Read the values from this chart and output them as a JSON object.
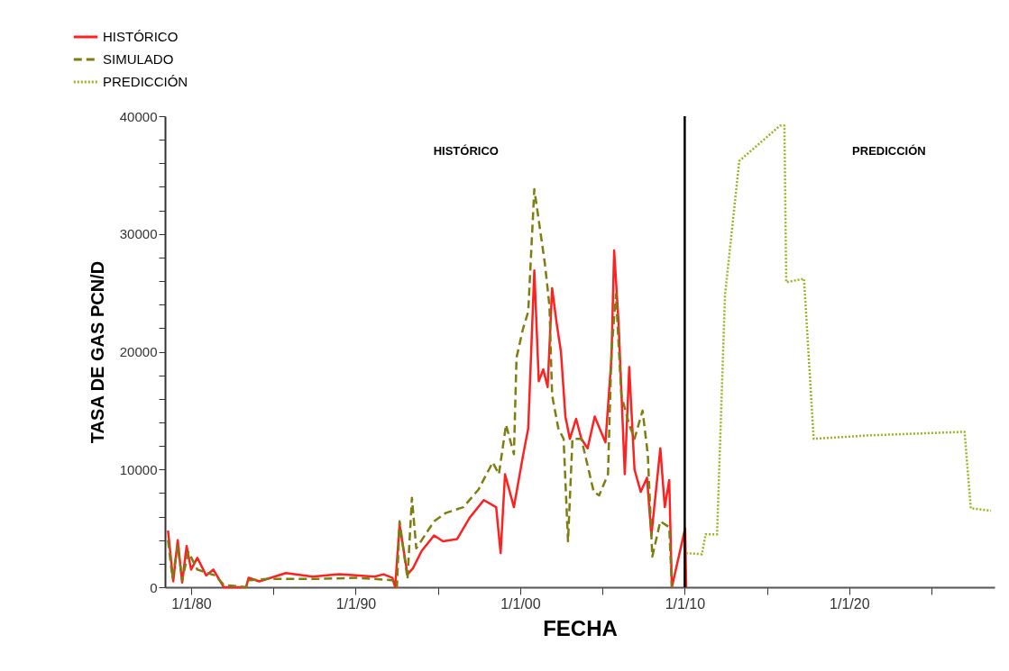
{
  "chart_data": {
    "type": "line",
    "xlabel": "FECHA",
    "ylabel": "TASA DE GAS PCN/D",
    "xlim": [
      "1978-06-01",
      "2028-10-31"
    ],
    "xticks": [
      {
        "value": "1980-01-01",
        "label": "1/1/80"
      },
      {
        "value": "1985-01-01",
        "label": null
      },
      {
        "value": "1990-01-01",
        "label": "1/1/90"
      },
      {
        "value": "1995-01-01",
        "label": null
      },
      {
        "value": "2000-01-01",
        "label": "1/1/00"
      },
      {
        "value": "2005-01-01",
        "label": null
      },
      {
        "value": "2010-01-01",
        "label": "1/1/10"
      },
      {
        "value": "2015-01-01",
        "label": null
      },
      {
        "value": "2020-01-01",
        "label": "1/1/20"
      },
      {
        "value": "2025-01-01",
        "label": null
      }
    ],
    "ylim": [
      0,
      40000
    ],
    "yticks": [
      {
        "value": 0,
        "label": "0"
      },
      {
        "value": 2000,
        "label": null
      },
      {
        "value": 4000,
        "label": null
      },
      {
        "value": 6000,
        "label": null
      },
      {
        "value": 8000,
        "label": null
      },
      {
        "value": 10000,
        "label": "10000"
      },
      {
        "value": 12000,
        "label": null
      },
      {
        "value": 14000,
        "label": null
      },
      {
        "value": 16000,
        "label": null
      },
      {
        "value": 18000,
        "label": null
      },
      {
        "value": 20000,
        "label": "20000"
      },
      {
        "value": 22000,
        "label": null
      },
      {
        "value": 24000,
        "label": null
      },
      {
        "value": 26000,
        "label": null
      },
      {
        "value": 28000,
        "label": null
      },
      {
        "value": 30000,
        "label": "30000"
      },
      {
        "value": 32000,
        "label": null
      },
      {
        "value": 34000,
        "label": null
      },
      {
        "value": 36000,
        "label": null
      },
      {
        "value": 38000,
        "label": null
      },
      {
        "value": 40000,
        "label": "40000"
      }
    ],
    "grid": false,
    "legend": "top left",
    "annotations": [
      "HISTÓRICO",
      "PREDICCIÓN"
    ],
    "ref_lines": [
      {
        "axis": "x",
        "value": "2010-01-01",
        "label": null,
        "color": "#000000"
      }
    ],
    "series": [
      {
        "name": "HISTÓRICO",
        "color": "#ff2020",
        "line_style": "solid",
        "x": [
          "1978-08-07",
          "1978-12-01",
          "1979-03-10",
          "1979-06-17",
          "1979-09-24",
          "1980-01-01",
          "1980-05-18",
          "1980-12-01",
          "1981-05-08",
          "1981-12-28",
          "1983-05-04",
          "1983-07-01",
          "1984-02-24",
          "1985-10-08",
          "1987-05-22",
          "1989-01-01",
          "1991-02-28",
          "1991-09-13",
          "1992-03-28",
          "1992-05-26",
          "1992-09-02",
          "1993-02-25",
          "1993-06-24",
          "1994-01-08",
          "1994-10-08",
          "1995-04-23",
          "1996-03-03",
          "1996-12-05",
          "1997-10-16",
          "1998-07-17",
          "1998-10-24",
          "1999-01-30",
          "1999-08-15",
          "2000-03-01",
          "2000-06-28",
          "2000-11-10",
          "2001-02-17",
          "2001-05-27",
          "2001-09-02",
          "2001-12-10",
          "2002-03-18",
          "2002-06-24",
          "2002-10-01",
          "2003-01-08",
          "2003-05-26",
          "2003-09-21",
          "2004-02-06",
          "2004-07-13",
          "2005-03-08",
          "2005-07-20",
          "2005-09-17",
          "2005-12-24",
          "2006-05-11",
          "2006-08-18",
          "2006-12-13",
          "2007-05-01",
          "2007-09-16",
          "2007-12-23",
          "2008-07-08",
          "2008-10-15",
          "2009-01-22",
          "2009-03-21",
          "2010-01-10",
          "2010-02-02"
        ],
        "values": [
          4800,
          500,
          4000,
          400,
          3500,
          1500,
          2500,
          1000,
          1500,
          0,
          0,
          800,
          500,
          1200,
          900,
          1100,
          900,
          1100,
          800,
          0,
          5300,
          1100,
          1600,
          3100,
          4400,
          3900,
          4100,
          5900,
          7400,
          6800,
          2900,
          9600,
          6800,
          11100,
          13500,
          26900,
          17500,
          18500,
          17000,
          25400,
          22500,
          20000,
          14500,
          12600,
          14300,
          12600,
          11800,
          14500,
          12300,
          19500,
          28600,
          22500,
          9600,
          18700,
          10000,
          8100,
          9300,
          4400,
          11800,
          6800,
          9100,
          0,
          5000,
          0
        ]
      },
      {
        "name": "SIMULADO",
        "color": "#7d7d10",
        "line_style": "dashed",
        "x": [
          "1978-08-07",
          "1978-11-14",
          "1979-03-10",
          "1979-06-17",
          "1979-11-02",
          "1980-05-18",
          "1981-06-18",
          "1981-12-28",
          "1983-05-04",
          "1983-07-01",
          "1984-09-08",
          "1987-05-22",
          "1990-01-31",
          "1992-03-28",
          "1992-07-05",
          "1992-09-02",
          "1993-02-25",
          "1993-06-03",
          "1993-09-08",
          "1994-10-08",
          "1995-06-21",
          "1996-07-19",
          "1997-06-21",
          "1998-05-01",
          "1998-09-16",
          "1999-02-21",
          "1999-08-15",
          "1999-10-12",
          "2000-03-01",
          "2000-06-28",
          "2000-11-10",
          "2001-03-28",
          "2001-07-05",
          "2001-10-12",
          "2001-12-10",
          "2002-04-26",
          "2002-08-22",
          "2002-11-28",
          "2003-03-07",
          "2003-09-21",
          "2004-06-21",
          "2004-10-19",
          "2005-05-04",
          "2005-07-20",
          "2005-10-27",
          "2006-02-24",
          "2006-08-18",
          "2006-12-13",
          "2007-06-10",
          "2007-10-04",
          "2008-01-12",
          "2008-07-08",
          "2009-01-22",
          "2009-03-21"
        ],
        "values": [
          4000,
          800,
          3500,
          600,
          3000,
          1500,
          1000,
          200,
          0,
          600,
          700,
          700,
          800,
          600,
          0,
          5600,
          700,
          7600,
          3300,
          5600,
          6300,
          6800,
          8300,
          10600,
          9600,
          13800,
          11300,
          19500,
          21900,
          23400,
          33800,
          30100,
          27400,
          23900,
          16300,
          13500,
          12600,
          3900,
          12600,
          12600,
          8100,
          7800,
          9600,
          20000,
          24900,
          16300,
          13800,
          12600,
          15000,
          11300,
          2600,
          5600,
          5100,
          0
        ]
      },
      {
        "name": "PREDICCIÓN",
        "color": "#a0b020",
        "line_style": "dotted",
        "x": [
          "2010-01-30",
          "2011-01-19",
          "2011-04-08",
          "2011-12-20",
          "2012-06-13",
          "2013-04-26",
          "2015-10-19",
          "2016-01-23",
          "2016-03-03",
          "2017-04-01",
          "2017-11-03",
          "2021-04-16",
          "2027-01-04",
          "2027-05-22",
          "2028-08-14"
        ],
        "values": [
          2900,
          2800,
          4500,
          4500,
          24800,
          36200,
          39200,
          39200,
          25900,
          26200,
          12600,
          12900,
          13200,
          6700,
          6500
        ]
      }
    ]
  }
}
